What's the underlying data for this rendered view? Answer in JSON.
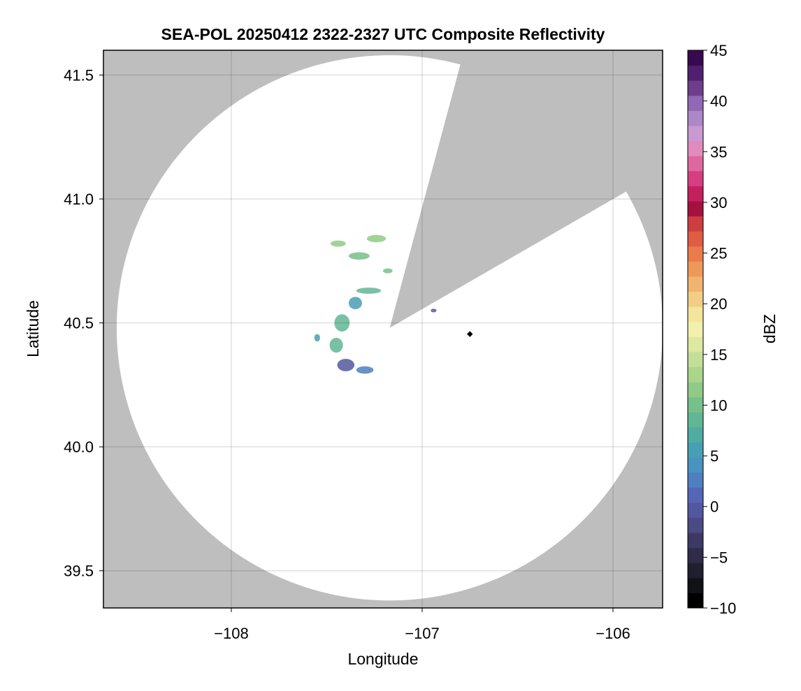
{
  "chart_data": {
    "type": "heatmap",
    "title": "SEA-POL 20250412 2322-2327 UTC Composite Reflectivity",
    "xlabel": "Longitude",
    "ylabel": "Latitude",
    "xlim": [
      -108.67,
      -105.74
    ],
    "ylim": [
      39.35,
      41.6
    ],
    "xticks": [
      -108,
      -107,
      -106
    ],
    "xtick_labels": [
      "−108",
      "−107",
      "−106"
    ],
    "yticks": [
      39.5,
      40.0,
      40.5,
      41.0,
      41.5
    ],
    "ytick_labels": [
      "39.5",
      "40.0",
      "40.5",
      "41.0",
      "41.5"
    ],
    "grid": true,
    "background_color": "#bebebe",
    "coverage_color": "#ffffff",
    "radar": {
      "center_lon": -107.17,
      "center_lat": 40.48,
      "range_deg_lat": 1.1,
      "blocked_sector_deg": [
        15,
        60
      ]
    },
    "site_marker": {
      "lon": -106.75,
      "lat": 40.455
    },
    "colorbar": {
      "label": "dBZ",
      "min": -10,
      "max": 45,
      "step": 2.5,
      "ticks": [
        -10,
        -5,
        0,
        5,
        10,
        15,
        20,
        25,
        30,
        35,
        40,
        45
      ],
      "tick_labels": [
        "−10",
        "−5",
        "0",
        "5",
        "10",
        "15",
        "20",
        "25",
        "30",
        "35",
        "40",
        "45"
      ],
      "colors": [
        "#000000",
        "#111118",
        "#1f1f30",
        "#2e2c48",
        "#3c3a64",
        "#4a4a84",
        "#5258a0",
        "#5666b6",
        "#4f7fc0",
        "#4893bf",
        "#489fb3",
        "#50aba3",
        "#61b695",
        "#77c08a",
        "#90ca86",
        "#aad58c",
        "#c3df97",
        "#dde8a2",
        "#f3f0ae",
        "#f5e49c",
        "#f3cd86",
        "#f0b371",
        "#ef985c",
        "#ea7b4b",
        "#e05c43",
        "#cc3e3f",
        "#a5113f",
        "#c4205e",
        "#d53f82",
        "#de679f",
        "#e08bbe",
        "#c89ad0",
        "#ad87c6",
        "#9168b4",
        "#6e3d8c",
        "#511f6f",
        "#37094f"
      ]
    },
    "echoes": [
      {
        "lon": -107.4,
        "lat": 40.33,
        "w": 0.09,
        "h": 0.05,
        "dbz": 0
      },
      {
        "lon": -107.3,
        "lat": 40.31,
        "w": 0.09,
        "h": 0.03,
        "dbz": 2
      },
      {
        "lon": -107.45,
        "lat": 40.41,
        "w": 0.07,
        "h": 0.06,
        "dbz": 9
      },
      {
        "lon": -107.42,
        "lat": 40.5,
        "w": 0.08,
        "h": 0.07,
        "dbz": 8
      },
      {
        "lon": -107.35,
        "lat": 40.58,
        "w": 0.07,
        "h": 0.05,
        "dbz": 6
      },
      {
        "lon": -107.28,
        "lat": 40.63,
        "w": 0.13,
        "h": 0.025,
        "dbz": 8
      },
      {
        "lon": -107.33,
        "lat": 40.77,
        "w": 0.11,
        "h": 0.03,
        "dbz": 10
      },
      {
        "lon": -107.44,
        "lat": 40.82,
        "w": 0.08,
        "h": 0.025,
        "dbz": 11
      },
      {
        "lon": -107.24,
        "lat": 40.84,
        "w": 0.1,
        "h": 0.03,
        "dbz": 12
      },
      {
        "lon": -107.18,
        "lat": 40.71,
        "w": 0.05,
        "h": 0.02,
        "dbz": 10
      },
      {
        "lon": -107.55,
        "lat": 40.44,
        "w": 0.03,
        "h": 0.03,
        "dbz": 6
      },
      {
        "lon": -106.94,
        "lat": 40.55,
        "w": 0.03,
        "h": 0.015,
        "dbz": 0
      }
    ]
  }
}
